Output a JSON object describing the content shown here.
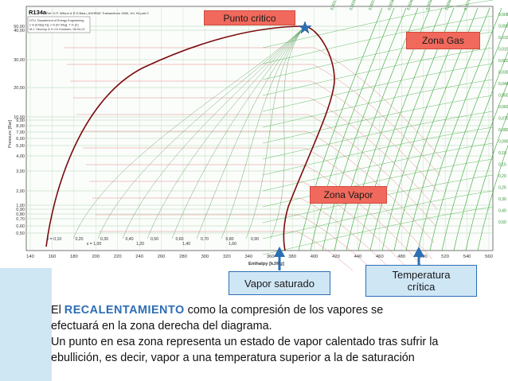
{
  "diagram": {
    "refrigerant": "R134a",
    "reference": "Ref: D.P. Wilson & R.S.Basu, ASHRAE Transactions 1988, Vol. 94 part 2",
    "credit_lines": [
      "DTU, Department of Energy Engineering",
      "s in [kJ/(kg K)], v in [m^3/kg], T in [C]",
      "M.J. Skovrup & H.J.H Knudsen, 06-04-22"
    ],
    "x_axis_title": "Enthalpy [kJ/kg]",
    "y_axis_title": "Pressure [Bar]",
    "x_ticks": [
      "140",
      "160",
      "180",
      "200",
      "220",
      "240",
      "260",
      "280",
      "300",
      "320",
      "340",
      "360",
      "380",
      "400",
      "420",
      "440",
      "460",
      "480",
      "500",
      "520",
      "540",
      "560"
    ],
    "y_ticks": [
      "50,00",
      "40,00",
      "30,00",
      "20,00",
      "10,00",
      "9,00",
      "8,00",
      "7,00",
      "6,00",
      "5,00",
      "4,00",
      "3,00",
      "2,00",
      "1,00",
      "0,90",
      "0,80",
      "0,70",
      "0,60",
      "0,50"
    ],
    "quality_labels": [
      "x = 0,10",
      "0,20",
      "0,30",
      "0,40",
      "0,50",
      "0,60",
      "0,70",
      "0,80",
      "0,90"
    ],
    "quality_sub_labels": [
      "s = 1,00",
      "1,20",
      "1,40",
      "1,60"
    ],
    "volume_labels": [
      "0,0015",
      "0,0020",
      "0,0025",
      "0,0030",
      "0,0040",
      "0,0050",
      "0,0060",
      "0,0070",
      "0,0080",
      "0,0090",
      "0,010",
      "0,015",
      "0,020",
      "0,030",
      "0,040",
      "0,050",
      "0,060",
      "0,070",
      "0,080",
      "0,090",
      "0,10",
      "0,15",
      "0,20",
      "0,25",
      "0,30",
      "0,40",
      "0,50"
    ],
    "annotations": {
      "punto_critico": "Punto critico",
      "zona_gas": "Zona Gas",
      "zona_vapor": "Zona Vapor",
      "vapor_saturado": "Vapor saturado",
      "temperatura_critica_line1": "Temperatura",
      "temperatura_critica_line2": "crítica"
    },
    "colors": {
      "callout_red": "#f0695c",
      "callout_blue_fill": "#cfe6f5",
      "arrow_blue": "#2c6fb4",
      "grid_green": "#3aa33a",
      "saturation_curve": "#7a0c0c",
      "sidebar": "#cfe6f3"
    }
  },
  "text": {
    "line1_pre": "El ",
    "line1_emph": "RECALENTAMIENTO",
    "line1_post": " como la compresión de los vapores se",
    "line2": "efectuará en la zona derecha del diagrama.",
    "line3": "Un punto en esa zona representa un estado de vapor calentado tras sufrir la",
    "line4": "ebullición, es decir, vapor a una temperatura superior a la de saturación"
  }
}
